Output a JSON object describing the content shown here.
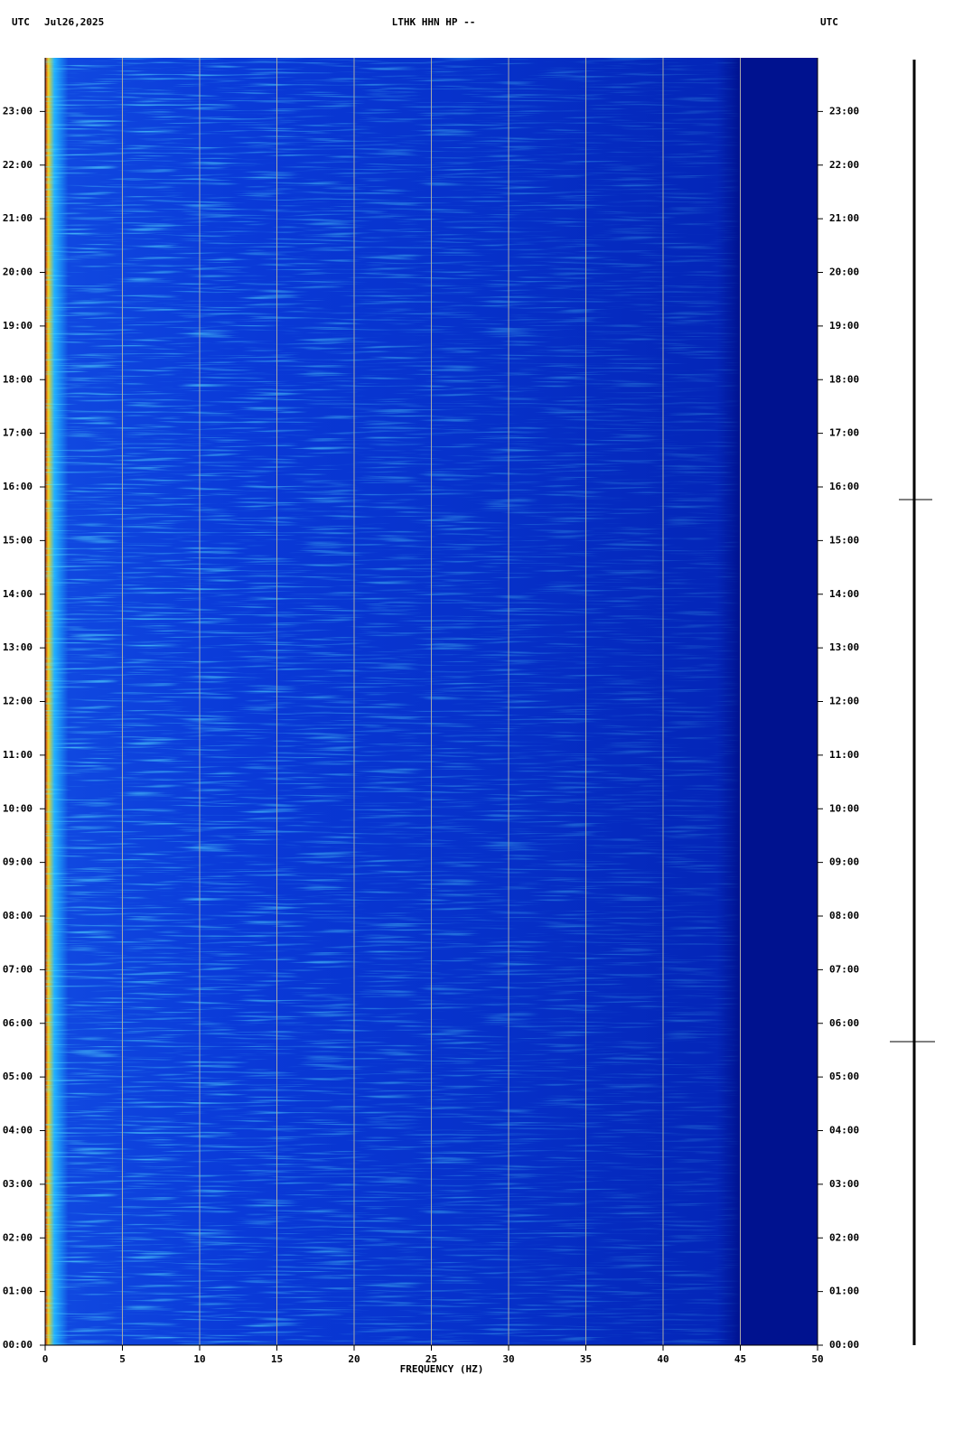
{
  "chart_data": {
    "type": "spectrogram",
    "title": "LTHK HHN HP --",
    "date": "Jul26,2025",
    "time_zone": "UTC",
    "x_label": "FREQUENCY (HZ)",
    "xlim": [
      0,
      50
    ],
    "xticks": [
      0,
      5,
      10,
      15,
      20,
      25,
      30,
      35,
      40,
      45,
      50
    ],
    "ylim": [
      0,
      24
    ],
    "yticks": [
      {
        "value": 0,
        "label": "00:00"
      },
      {
        "value": 1,
        "label": "01:00"
      },
      {
        "value": 2,
        "label": "02:00"
      },
      {
        "value": 3,
        "label": "03:00"
      },
      {
        "value": 4,
        "label": "04:00"
      },
      {
        "value": 5,
        "label": "05:00"
      },
      {
        "value": 6,
        "label": "06:00"
      },
      {
        "value": 7,
        "label": "07:00"
      },
      {
        "value": 8,
        "label": "08:00"
      },
      {
        "value": 9,
        "label": "09:00"
      },
      {
        "value": 10,
        "label": "10:00"
      },
      {
        "value": 11,
        "label": "11:00"
      },
      {
        "value": 12,
        "label": "12:00"
      },
      {
        "value": 13,
        "label": "13:00"
      },
      {
        "value": 14,
        "label": "14:00"
      },
      {
        "value": 15,
        "label": "15:00"
      },
      {
        "value": 16,
        "label": "16:00"
      },
      {
        "value": 17,
        "label": "17:00"
      },
      {
        "value": 18,
        "label": "18:00"
      },
      {
        "value": 19,
        "label": "19:00"
      },
      {
        "value": 20,
        "label": "20:00"
      },
      {
        "value": 21,
        "label": "21:00"
      },
      {
        "value": 22,
        "label": "22:00"
      },
      {
        "value": 23,
        "label": "23:00"
      }
    ],
    "grid": true
  }
}
